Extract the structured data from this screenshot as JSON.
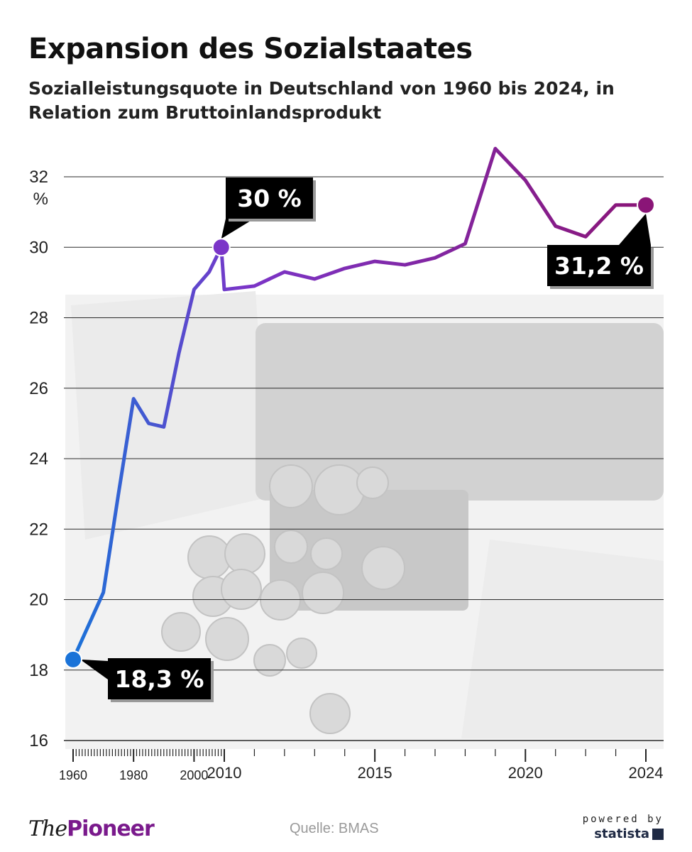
{
  "header": {
    "title": "Expansion des Sozialstaates",
    "subtitle": "Sozialleistungsquote in Deutschland von 1960 bis 2024, in Relation zum Bruttoinlandsprodukt"
  },
  "chart_data": {
    "type": "line",
    "title": "Expansion des Sozialstaates",
    "subtitle": "Sozialleistungsquote in Deutschland von 1960 bis 2024, in Relation zum Bruttoinlandsprodukt",
    "ylabel": "%",
    "ylim": [
      16,
      32
    ],
    "yticks": [
      16,
      18,
      20,
      22,
      24,
      26,
      28,
      30,
      32
    ],
    "xtick_labels": [
      "1960",
      "1980",
      "2000",
      "2010",
      "2015",
      "2020",
      "2024"
    ],
    "grid": true,
    "series": [
      {
        "x": [
          1960,
          1970,
          1975,
          1980,
          1985,
          1990,
          1995,
          2000,
          2005,
          2009,
          2010,
          2011,
          2012,
          2013,
          2014,
          2015,
          2016,
          2017,
          2018,
          2019,
          2020,
          2021,
          2022,
          2023,
          2024
        ],
        "values": [
          18.3,
          20.2,
          23.0,
          25.7,
          25.0,
          24.9,
          27.0,
          28.8,
          29.3,
          30.0,
          28.8,
          28.9,
          29.3,
          29.1,
          29.4,
          29.6,
          29.5,
          29.7,
          30.1,
          32.8,
          31.9,
          30.6,
          30.3,
          31.2,
          31.2
        ]
      }
    ],
    "colors": {
      "start": "#1a73d8",
      "middle": "#7b35c8",
      "end": "#8a1577"
    },
    "callouts": [
      {
        "label": "18,3 %",
        "year": 1960,
        "value": 18.3
      },
      {
        "label": "30 %",
        "year": 2009,
        "value": 30.0
      },
      {
        "label": "31,2 %",
        "year": 2024,
        "value": 31.2
      }
    ]
  },
  "footer": {
    "brand_the": "The",
    "brand_pioneer": "Pioneer",
    "source": "Quelle: BMAS",
    "powered_by": "powered by",
    "statista": "statista"
  }
}
